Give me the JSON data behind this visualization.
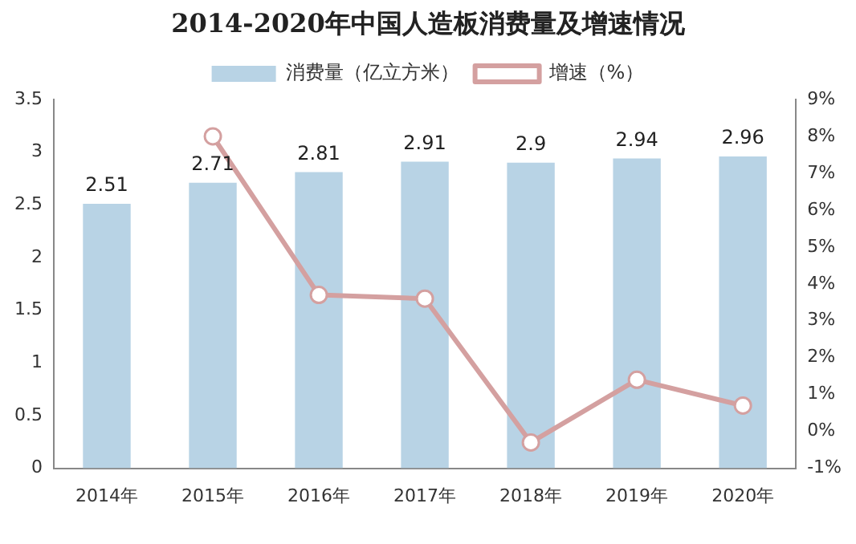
{
  "chart_data": {
    "type": "bar",
    "title": "2014-2020年中国人造板消费量及增速情况",
    "categories": [
      "2014年",
      "2015年",
      "2016年",
      "2017年",
      "2018年",
      "2019年",
      "2020年"
    ],
    "series": [
      {
        "name": "消费量（亿立方米）",
        "color": "#b8d3e5",
        "values": [
          2.51,
          2.71,
          2.81,
          2.91,
          2.9,
          2.94,
          2.96
        ],
        "value_labels": [
          "2.51",
          "2.71",
          "2.81",
          "2.91",
          "2.9",
          "2.94",
          "2.96"
        ]
      },
      {
        "name": "增速（%）",
        "type": "line",
        "axis": "y2",
        "color": "#d4a0a0",
        "marker": "circle",
        "line_style": "solid",
        "values": [
          null,
          8.0,
          3.7,
          3.6,
          -0.3,
          1.4,
          0.7
        ]
      }
    ],
    "ylim": [
      0,
      3.5
    ],
    "yticks": [
      0,
      0.5,
      1,
      1.5,
      2,
      2.5,
      3,
      3.5
    ],
    "y2lim": [
      -1,
      9
    ],
    "y2ticks": [
      {
        "value": -1,
        "label": "-1%"
      },
      {
        "value": 0,
        "label": "0%"
      },
      {
        "value": 1,
        "label": "1%"
      },
      {
        "value": 2,
        "label": "2%"
      },
      {
        "value": 3,
        "label": "3%"
      },
      {
        "value": 4,
        "label": "4%"
      },
      {
        "value": 5,
        "label": "5%"
      },
      {
        "value": 6,
        "label": "6%"
      },
      {
        "value": 7,
        "label": "7%"
      },
      {
        "value": 8,
        "label": "8%"
      },
      {
        "value": 9,
        "label": "9%"
      }
    ],
    "grid": false,
    "legend": "top"
  }
}
